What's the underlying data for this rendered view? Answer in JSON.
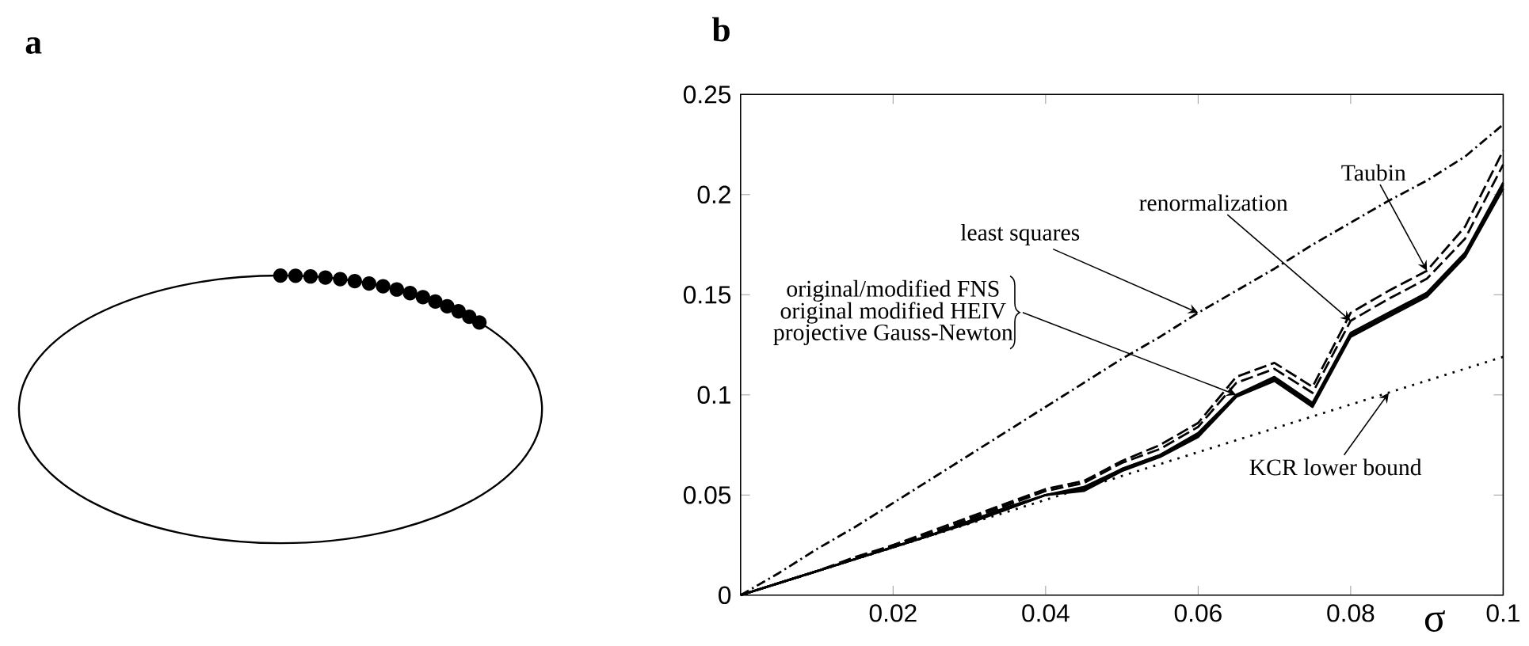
{
  "chart_data": [
    {
      "type": "other",
      "title": "a"
    },
    {
      "type": "line",
      "title": "b",
      "xlabel": "σ",
      "xlim": [
        0,
        0.1
      ],
      "ylim": [
        0,
        0.25
      ],
      "xticks": [
        0.02,
        0.04,
        0.06,
        0.08,
        0.1
      ],
      "yticks": [
        0,
        0.05,
        0.1,
        0.15,
        0.2,
        0.25
      ],
      "grid": false,
      "x": [
        0,
        0.005,
        0.01,
        0.015,
        0.02,
        0.025,
        0.03,
        0.035,
        0.04,
        0.045,
        0.05,
        0.055,
        0.06,
        0.065,
        0.07,
        0.075,
        0.08,
        0.085,
        0.09,
        0.095,
        0.1
      ],
      "series": [
        {
          "color": "#000000",
          "line_style": "dashdot",
          "values": [
            0,
            0.011,
            0.023,
            0.034,
            0.046,
            0.058,
            0.07,
            0.082,
            0.094,
            0.106,
            0.118,
            0.129,
            0.141,
            0.152,
            0.163,
            0.175,
            0.186,
            0.197,
            0.207,
            0.219,
            0.235
          ]
        },
        {
          "color": "#000000",
          "line_style": "dashed",
          "values": [
            0,
            0.006,
            0.012,
            0.019,
            0.025,
            0.032,
            0.039,
            0.046,
            0.053,
            0.057,
            0.067,
            0.075,
            0.086,
            0.109,
            0.116,
            0.104,
            0.141,
            0.152,
            0.162,
            0.184,
            0.222
          ]
        },
        {
          "color": "#000000",
          "line_style": "dashed",
          "values": [
            0,
            0.006,
            0.012,
            0.018,
            0.025,
            0.031,
            0.038,
            0.045,
            0.052,
            0.056,
            0.066,
            0.073,
            0.084,
            0.106,
            0.113,
            0.101,
            0.137,
            0.148,
            0.158,
            0.178,
            0.215
          ]
        },
        {
          "color": "#000000",
          "line_style": "solid",
          "values": [
            0,
            0.006,
            0.012,
            0.018,
            0.024,
            0.03,
            0.037,
            0.043,
            0.05,
            0.053,
            0.063,
            0.07,
            0.08,
            0.1,
            0.108,
            0.095,
            0.13,
            0.14,
            0.15,
            0.17,
            0.205
          ]
        },
        {
          "color": "#000000",
          "line_style": "solid",
          "values": [
            0,
            0.006,
            0.012,
            0.018,
            0.024,
            0.03,
            0.036,
            0.043,
            0.05,
            0.052,
            0.062,
            0.069,
            0.079,
            0.099,
            0.107,
            0.094,
            0.129,
            0.139,
            0.149,
            0.169,
            0.203
          ]
        },
        {
          "color": "#000000",
          "line_style": "solid",
          "values": [
            0,
            0.006,
            0.012,
            0.018,
            0.024,
            0.03,
            0.037,
            0.044,
            0.05,
            0.054,
            0.063,
            0.07,
            0.081,
            0.1,
            0.109,
            0.096,
            0.131,
            0.141,
            0.151,
            0.171,
            0.206
          ]
        },
        {
          "color": "#000000",
          "line_style": "dotted",
          "x": [
            0,
            0.1
          ],
          "values": [
            0,
            0.119
          ]
        }
      ],
      "annotations": [
        {
          "text": "least squares",
          "x": 0.06,
          "y": 0.141
        },
        {
          "text": "Taubin",
          "x": 0.09,
          "y": 0.162
        },
        {
          "text": "renormalization",
          "x": 0.08,
          "y": 0.137
        },
        {
          "text": "original/modified FNS",
          "x": 0.065,
          "y": 0.1
        },
        {
          "text": "original modified HEIV",
          "x": 0.065,
          "y": 0.1
        },
        {
          "text": "projective Gauss-Newton",
          "x": 0.065,
          "y": 0.1
        },
        {
          "text": "KCR lower bound",
          "x": 0.085,
          "y": 0.101
        }
      ]
    }
  ]
}
